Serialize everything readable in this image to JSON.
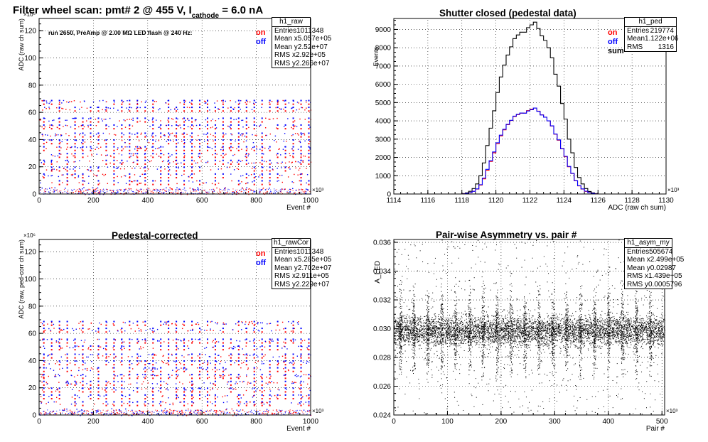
{
  "chart_data": [
    {
      "type": "scatter",
      "title": "Filter wheel scan: pmt#   2 @   455 V, I",
      "title_sub": "cathode",
      "title_tail": "= 6.0 nA",
      "note": "run 2650, PreAmp @ 2.00 MΩ  LED flash @  240 Hz:",
      "xlabel": "Event #",
      "ylabel": "ADC (raw ch sum)",
      "xexp": "×10³",
      "yexp": "×10⁶",
      "xlim": [
        0,
        1000
      ],
      "ylim": [
        0,
        129
      ],
      "xticks": [
        0,
        200,
        400,
        600,
        800,
        1000
      ],
      "yticks": [
        0,
        20,
        40,
        60,
        80,
        100,
        120
      ],
      "legend": {
        "on": "on",
        "off": "off"
      },
      "stats": {
        "name": "h1_raw",
        "rows": [
          [
            "Entries",
            "1011348"
          ],
          [
            "Mean x",
            "5.057e+05"
          ],
          [
            "Mean y",
            "2.52e+07"
          ],
          [
            "RMS x",
            "2.92e+05"
          ],
          [
            "RMS y",
            "2.266e+07"
          ]
        ]
      },
      "series": [
        {
          "name": "on",
          "color": "#ff0000"
        },
        {
          "name": "off",
          "color": "#0000ff"
        }
      ],
      "levels": [
        68,
        63,
        55,
        50,
        44,
        39,
        34,
        29,
        24,
        19,
        14,
        9,
        4,
        1
      ]
    },
    {
      "type": "line",
      "title": "Shutter closed (pedestal data)",
      "xlabel": "ADC (raw ch sum)",
      "ylabel": "Events",
      "xexp": "×10³",
      "xlim": [
        1114,
        1130
      ],
      "ylim": [
        0,
        9600
      ],
      "xticks": [
        1114,
        1116,
        1118,
        1120,
        1122,
        1124,
        1126,
        1128,
        1130
      ],
      "yticks": [
        0,
        1000,
        2000,
        3000,
        4000,
        5000,
        6000,
        7000,
        8000,
        9000
      ],
      "legend": {
        "on": "on",
        "off": "off",
        "sum": "sum"
      },
      "stats": {
        "name": "h1_ped",
        "rows": [
          [
            "Entries",
            "219774"
          ],
          [
            "Mean",
            "1.122e+06"
          ],
          [
            "RMS",
            "1316"
          ]
        ]
      },
      "bin_width": 0.2,
      "x": [
        1118.0,
        1118.2,
        1118.4,
        1118.6,
        1118.8,
        1119.0,
        1119.2,
        1119.4,
        1119.6,
        1119.8,
        1120.0,
        1120.2,
        1120.4,
        1120.6,
        1120.8,
        1121.0,
        1121.2,
        1121.4,
        1121.6,
        1121.8,
        1122.0,
        1122.2,
        1122.4,
        1122.6,
        1122.8,
        1123.0,
        1123.2,
        1123.4,
        1123.6,
        1123.8,
        1124.0,
        1124.2,
        1124.4,
        1124.6,
        1124.8,
        1125.0,
        1125.2,
        1125.4,
        1125.6,
        1125.8
      ],
      "series": [
        {
          "name": "sum",
          "color": "#000000",
          "values": [
            20,
            60,
            150,
            300,
            550,
            1000,
            1700,
            2650,
            3600,
            4550,
            5550,
            6400,
            7050,
            7600,
            8050,
            8500,
            8700,
            8850,
            8850,
            9100,
            9250,
            9400,
            9050,
            8650,
            8400,
            8000,
            7450,
            6550,
            5900,
            4950,
            4100,
            3000,
            2250,
            1450,
            900,
            550,
            300,
            140,
            60,
            20
          ]
        },
        {
          "name": "on",
          "color": "#ff0000",
          "values": [
            10,
            30,
            70,
            150,
            270,
            490,
            830,
            1300,
            1780,
            2250,
            2750,
            3180,
            3510,
            3790,
            4020,
            4240,
            4340,
            4420,
            4430,
            4560,
            4640,
            4700,
            4530,
            4330,
            4200,
            4000,
            3720,
            3270,
            2940,
            2470,
            2040,
            1490,
            1120,
            720,
            445,
            270,
            145,
            70,
            30,
            10
          ]
        },
        {
          "name": "off",
          "color": "#0000ff",
          "values": [
            10,
            30,
            80,
            150,
            280,
            510,
            870,
            1350,
            1820,
            2300,
            2800,
            3220,
            3540,
            3810,
            4030,
            4260,
            4360,
            4430,
            4420,
            4540,
            4610,
            4700,
            4520,
            4320,
            4200,
            4000,
            3730,
            3280,
            2960,
            2480,
            2060,
            1510,
            1130,
            730,
            455,
            280,
            155,
            70,
            30,
            10
          ]
        }
      ]
    },
    {
      "type": "scatter",
      "title": "Pedestal-corrected",
      "xlabel": "Event #",
      "ylabel": "ADC (raw, ped-corr ch sum)",
      "xexp": "×10³",
      "yexp": "×10⁶",
      "xlim": [
        0,
        1000
      ],
      "ylim": [
        0,
        129
      ],
      "xticks": [
        0,
        200,
        400,
        600,
        800,
        1000
      ],
      "yticks": [
        0,
        20,
        40,
        60,
        80,
        100,
        120
      ],
      "legend": {
        "on": "on",
        "off": "off"
      },
      "stats": {
        "name": "h1_rawCor",
        "rows": [
          [
            "Entries",
            "1011348"
          ],
          [
            "Mean x",
            "5.285e+05"
          ],
          [
            "Mean y",
            "2.702e+07"
          ],
          [
            "RMS x",
            "2.911e+05"
          ],
          [
            "RMS y",
            "2.229e+07"
          ]
        ]
      },
      "series": [
        {
          "name": "on",
          "color": "#ff0000"
        },
        {
          "name": "off",
          "color": "#0000ff"
        }
      ],
      "levels": [
        68,
        63,
        55,
        50,
        44,
        39,
        34,
        29,
        24,
        19,
        14,
        9,
        4,
        1
      ]
    },
    {
      "type": "scatter",
      "title": "Pair-wise Asymmetry vs. pair #",
      "xlabel": "Pair #",
      "ylabel": "A_LED",
      "xexp": "×10³",
      "xlim": [
        0,
        505
      ],
      "ylim": [
        0.024,
        0.0362
      ],
      "xticks": [
        0,
        100,
        200,
        300,
        400,
        500
      ],
      "yticks": [
        0.024,
        0.026,
        0.028,
        0.03,
        0.032,
        0.034,
        0.036
      ],
      "stats": {
        "name": "h1_asym_my",
        "rows": [
          [
            "Entries",
            "505674"
          ],
          [
            "Mean x",
            "2.499e+05"
          ],
          [
            "Mean y",
            "0.02987"
          ],
          [
            "RMS x",
            "1.439e+05"
          ],
          [
            "RMS y",
            "0.0005796"
          ]
        ]
      },
      "mean": 0.02987,
      "rms": 0.0005796,
      "step_x": [
        12,
        37,
        63,
        89,
        115,
        141,
        166,
        192,
        218,
        244,
        270,
        296,
        322,
        348,
        374,
        400,
        426,
        452,
        478
      ]
    }
  ]
}
